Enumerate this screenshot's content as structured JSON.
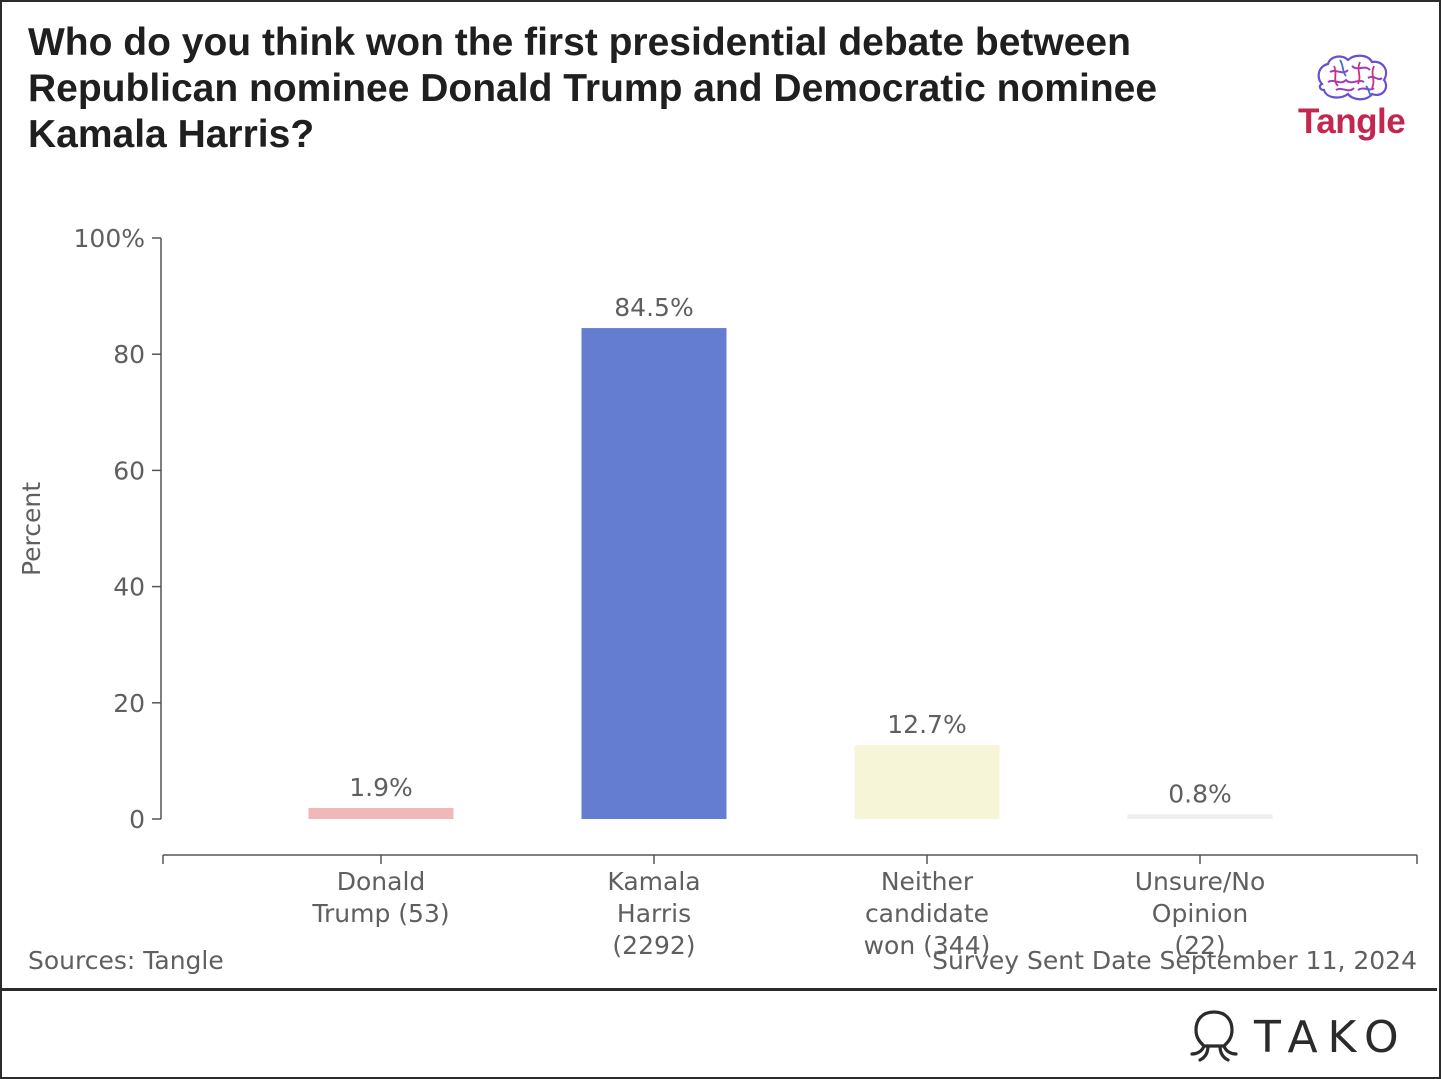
{
  "title": "Who do you think won the first presidential debate between Republican nominee Donald Trump and Democratic nominee Kamala Harris?",
  "logo": {
    "text": "Tangle",
    "icon": "brain-icon",
    "color": "#c4264f"
  },
  "chart_data": {
    "type": "bar",
    "title": "Who do you think won the first presidential debate between Republican nominee Donald Trump and Democratic nominee Kamala Harris?",
    "xlabel": "",
    "ylabel": "Percent",
    "ylim": [
      0,
      100
    ],
    "yticks": [
      0,
      20,
      40,
      60,
      80,
      100
    ],
    "ytick_labels": [
      "0",
      "20",
      "40",
      "60",
      "80",
      "100%"
    ],
    "grid": false,
    "categories": [
      [
        "Donald",
        "Trump (53)"
      ],
      [
        "Kamala",
        "Harris",
        "(2292)"
      ],
      [
        "Neither",
        "candidate",
        "won (344)"
      ],
      [
        "Unsure/No",
        "Opinion",
        "(22)"
      ]
    ],
    "values": [
      1.9,
      84.5,
      12.7,
      0.8
    ],
    "value_labels": [
      "1.9%",
      "84.5%",
      "12.7%",
      "0.8%"
    ],
    "colors": [
      "#f0b8b8",
      "#647dd0",
      "#f6f5d8",
      "#eeeeee"
    ]
  },
  "footer": {
    "source": "Sources: Tangle",
    "note": "Survey Sent Date September 11, 2024"
  },
  "brand": {
    "text": "TAKO",
    "icon": "tako-octopus-icon"
  }
}
